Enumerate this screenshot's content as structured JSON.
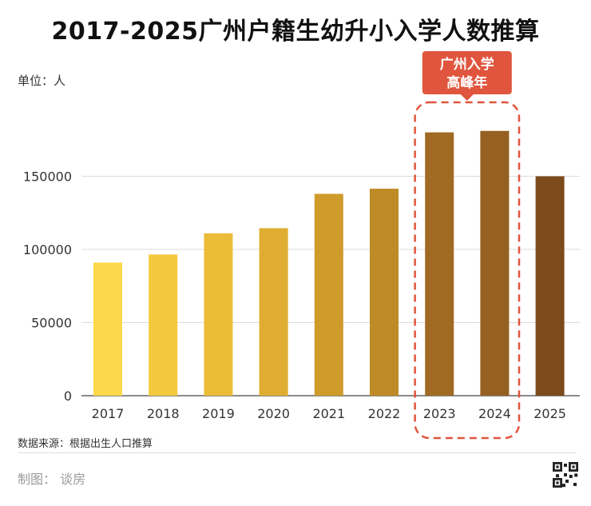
{
  "chart_data": {
    "type": "bar",
    "title": "2017-2025广州户籍生幼升小入学人数推算",
    "ylabel": "单位：人",
    "xlabel": "",
    "categories": [
      "2017",
      "2018",
      "2019",
      "2020",
      "2021",
      "2022",
      "2023",
      "2024",
      "2025"
    ],
    "values": [
      91000,
      96500,
      111000,
      114500,
      138000,
      141500,
      180000,
      181000,
      150000
    ],
    "ylim": [
      0,
      200000
    ],
    "yticks": [
      0,
      50000,
      100000,
      150000
    ],
    "ytick_labels": [
      "0",
      "50000",
      "100000",
      "150000"
    ],
    "grid": true,
    "colors": [
      "#fdd84a",
      "#f3c83e",
      "#ebbc38",
      "#dfad31",
      "#cf9b2b",
      "#bf8b27",
      "#a06a22",
      "#956022",
      "#7d4a1c"
    ],
    "highlight": {
      "categories": [
        "2023",
        "2024"
      ],
      "label_line1": "广州入学",
      "label_line2": "高峰年",
      "color": "#e0553d"
    }
  },
  "footer": {
    "source": "数据来源：根据出生人口推算",
    "maker": "制图：  谈房"
  }
}
